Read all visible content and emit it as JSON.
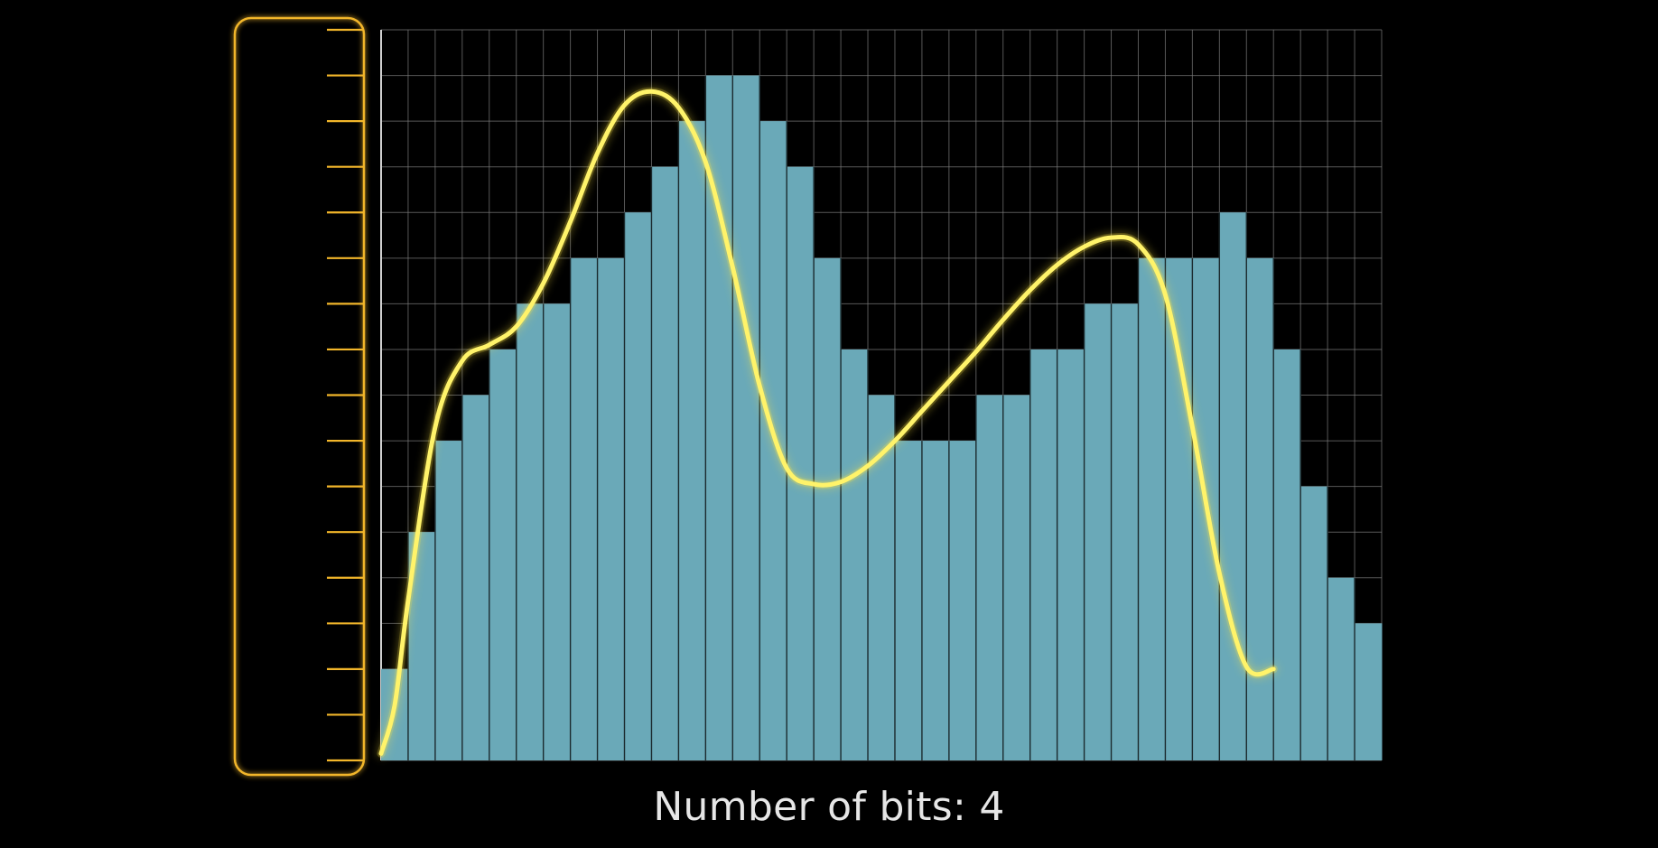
{
  "chart_data": {
    "type": "bar",
    "levels": 16,
    "bar_values": [
      2,
      5,
      7,
      8,
      9,
      10,
      10,
      11,
      11,
      12,
      13,
      14,
      15,
      15,
      14,
      13,
      11,
      9,
      8,
      7,
      7,
      7,
      8,
      8,
      9,
      9,
      10,
      10,
      11,
      11,
      11,
      12,
      11,
      9,
      6,
      4,
      3
    ],
    "curve": [
      [
        0.0,
        0.15
      ],
      [
        0.5,
        1.2
      ],
      [
        1.0,
        3.5
      ],
      [
        2.0,
        7.3
      ],
      [
        3.0,
        8.75
      ],
      [
        4.0,
        9.1
      ],
      [
        5.0,
        9.5
      ],
      [
        6.0,
        10.45
      ],
      [
        7.0,
        11.8
      ],
      [
        8.0,
        13.3
      ],
      [
        9.0,
        14.35
      ],
      [
        10.0,
        14.65
      ],
      [
        11.0,
        14.3
      ],
      [
        12.0,
        13.1
      ],
      [
        13.0,
        10.8
      ],
      [
        14.0,
        8.2
      ],
      [
        15.0,
        6.4
      ],
      [
        16.0,
        6.05
      ],
      [
        17.0,
        6.1
      ],
      [
        18.0,
        6.45
      ],
      [
        19.0,
        7.0
      ],
      [
        20.0,
        7.65
      ],
      [
        21.0,
        8.3
      ],
      [
        22.0,
        8.95
      ],
      [
        23.0,
        9.65
      ],
      [
        24.0,
        10.3
      ],
      [
        25.0,
        10.85
      ],
      [
        26.0,
        11.25
      ],
      [
        27.0,
        11.45
      ],
      [
        28.0,
        11.3
      ],
      [
        29.0,
        10.2
      ],
      [
        30.0,
        7.3
      ],
      [
        31.0,
        4.1
      ],
      [
        32.0,
        2.05
      ],
      [
        33.0,
        2.0
      ]
    ],
    "caption": "Number of bits: 4",
    "colors": {
      "bar": "#6aa9b8",
      "curve": "#fff36a",
      "curve_glow": "#ffe640",
      "ruler": "#f2b62a",
      "grid": "#7c7c7c",
      "background": "#000000"
    }
  }
}
